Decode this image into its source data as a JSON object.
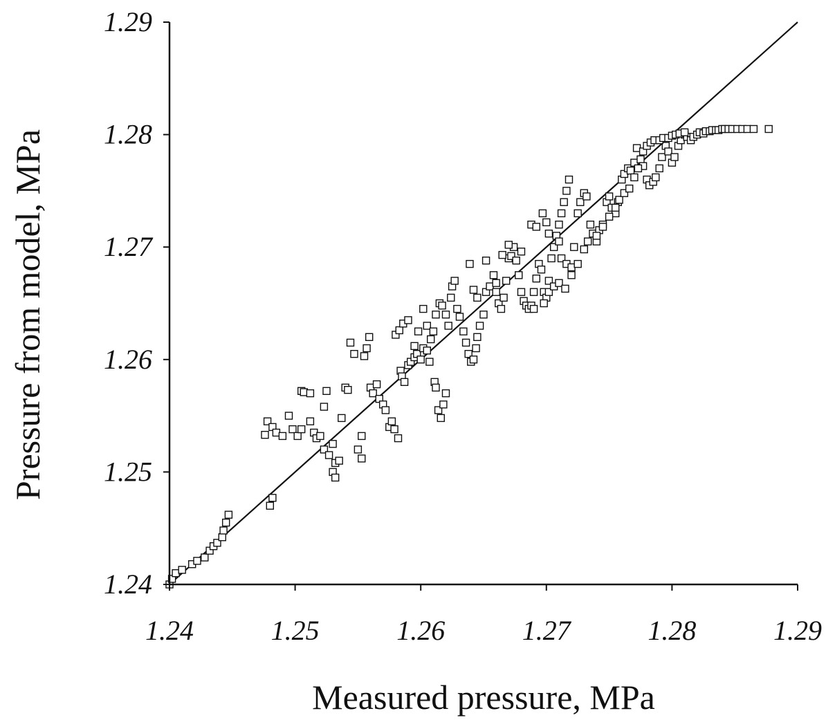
{
  "chart_data": {
    "type": "scatter",
    "title": "",
    "xlabel": "Measured pressure, MPa",
    "ylabel": "Pressure from model, MPa",
    "xlim": [
      1.24,
      1.29
    ],
    "ylim": [
      1.24,
      1.29
    ],
    "x_ticks": [
      "1.24",
      "1.25",
      "1.26",
      "1.27",
      "1.28",
      "1.29"
    ],
    "y_ticks": [
      "1.24",
      "1.25",
      "1.26",
      "1.27",
      "1.28",
      "1.29"
    ],
    "grid": false,
    "legend": "none",
    "marker": "open-square",
    "reference_line": {
      "x": [
        1.24,
        1.29
      ],
      "y": [
        1.24,
        1.29
      ]
    },
    "series": [
      {
        "points": [
          [
            1.24,
            1.24
          ],
          [
            1.2402,
            1.2405
          ],
          [
            1.2405,
            1.241
          ],
          [
            1.241,
            1.2413
          ],
          [
            1.2418,
            1.2418
          ],
          [
            1.2422,
            1.2421
          ],
          [
            1.2428,
            1.2424
          ],
          [
            1.2432,
            1.243
          ],
          [
            1.2435,
            1.2434
          ],
          [
            1.2438,
            1.2437
          ],
          [
            1.2442,
            1.2442
          ],
          [
            1.2443,
            1.2448
          ],
          [
            1.2445,
            1.2455
          ],
          [
            1.2447,
            1.2462
          ],
          [
            1.248,
            1.247
          ],
          [
            1.2482,
            1.2477
          ],
          [
            1.2476,
            1.2533
          ],
          [
            1.2478,
            1.2545
          ],
          [
            1.2482,
            1.254
          ],
          [
            1.2485,
            1.2535
          ],
          [
            1.249,
            1.2532
          ],
          [
            1.2495,
            1.255
          ],
          [
            1.2498,
            1.2538
          ],
          [
            1.2502,
            1.2532
          ],
          [
            1.2505,
            1.2538
          ],
          [
            1.2505,
            1.2572
          ],
          [
            1.2507,
            1.2571
          ],
          [
            1.2512,
            1.257
          ],
          [
            1.2512,
            1.2545
          ],
          [
            1.2515,
            1.2535
          ],
          [
            1.2517,
            1.253
          ],
          [
            1.252,
            1.2532
          ],
          [
            1.2523,
            1.2558
          ],
          [
            1.2525,
            1.2572
          ],
          [
            1.2523,
            1.252
          ],
          [
            1.2527,
            1.2515
          ],
          [
            1.253,
            1.2525
          ],
          [
            1.2532,
            1.2508
          ],
          [
            1.253,
            1.25
          ],
          [
            1.2532,
            1.2495
          ],
          [
            1.2535,
            1.251
          ],
          [
            1.2537,
            1.2548
          ],
          [
            1.254,
            1.2575
          ],
          [
            1.2542,
            1.2573
          ],
          [
            1.2544,
            1.2615
          ],
          [
            1.2547,
            1.2605
          ],
          [
            1.255,
            1.252
          ],
          [
            1.2553,
            1.2512
          ],
          [
            1.2553,
            1.2532
          ],
          [
            1.2555,
            1.2603
          ],
          [
            1.2557,
            1.261
          ],
          [
            1.2559,
            1.262
          ],
          [
            1.256,
            1.2575
          ],
          [
            1.2562,
            1.257
          ],
          [
            1.2565,
            1.2578
          ],
          [
            1.2567,
            1.2565
          ],
          [
            1.257,
            1.256
          ],
          [
            1.2572,
            1.2555
          ],
          [
            1.2575,
            1.254
          ],
          [
            1.2577,
            1.2545
          ],
          [
            1.2579,
            1.2538
          ],
          [
            1.2582,
            1.253
          ],
          [
            1.2584,
            1.259
          ],
          [
            1.2585,
            1.2585
          ],
          [
            1.2587,
            1.258
          ],
          [
            1.259,
            1.2595
          ],
          [
            1.2592,
            1.2598
          ],
          [
            1.2595,
            1.2602
          ],
          [
            1.2597,
            1.2605
          ],
          [
            1.26,
            1.26
          ],
          [
            1.2602,
            1.261
          ],
          [
            1.2605,
            1.2608
          ],
          [
            1.2607,
            1.2598
          ],
          [
            1.2611,
            1.258
          ],
          [
            1.2612,
            1.2575
          ],
          [
            1.2614,
            1.2555
          ],
          [
            1.2616,
            1.2548
          ],
          [
            1.2618,
            1.256
          ],
          [
            1.262,
            1.257
          ],
          [
            1.258,
            1.2622
          ],
          [
            1.2583,
            1.2626
          ],
          [
            1.2586,
            1.2632
          ],
          [
            1.259,
            1.2635
          ],
          [
            1.2595,
            1.2612
          ],
          [
            1.2598,
            1.2625
          ],
          [
            1.2602,
            1.2645
          ],
          [
            1.2605,
            1.263
          ],
          [
            1.2608,
            1.2618
          ],
          [
            1.261,
            1.2625
          ],
          [
            1.2612,
            1.264
          ],
          [
            1.2615,
            1.265
          ],
          [
            1.2617,
            1.2648
          ],
          [
            1.262,
            1.264
          ],
          [
            1.2622,
            1.263
          ],
          [
            1.2624,
            1.2655
          ],
          [
            1.2625,
            1.2665
          ],
          [
            1.2627,
            1.267
          ],
          [
            1.2629,
            1.2645
          ],
          [
            1.2631,
            1.2638
          ],
          [
            1.2634,
            1.2625
          ],
          [
            1.2636,
            1.2615
          ],
          [
            1.2638,
            1.2605
          ],
          [
            1.264,
            1.2598
          ],
          [
            1.2642,
            1.26
          ],
          [
            1.2644,
            1.261
          ],
          [
            1.2645,
            1.262
          ],
          [
            1.2647,
            1.263
          ],
          [
            1.265,
            1.264
          ],
          [
            1.2652,
            1.266
          ],
          [
            1.2655,
            1.2665
          ],
          [
            1.2658,
            1.2675
          ],
          [
            1.266,
            1.266
          ],
          [
            1.2662,
            1.265
          ],
          [
            1.2664,
            1.2645
          ],
          [
            1.2666,
            1.2655
          ],
          [
            1.2668,
            1.267
          ],
          [
            1.267,
            1.269
          ],
          [
            1.2672,
            1.2692
          ],
          [
            1.2674,
            1.27
          ],
          [
            1.2676,
            1.2688
          ],
          [
            1.2678,
            1.2675
          ],
          [
            1.268,
            1.266
          ],
          [
            1.2682,
            1.2652
          ],
          [
            1.2684,
            1.2648
          ],
          [
            1.2686,
            1.2645
          ],
          [
            1.2688,
            1.2648
          ],
          [
            1.269,
            1.266
          ],
          [
            1.2692,
            1.2672
          ],
          [
            1.2694,
            1.2685
          ],
          [
            1.2696,
            1.268
          ],
          [
            1.2698,
            1.266
          ],
          [
            1.27,
            1.2655
          ],
          [
            1.2702,
            1.267
          ],
          [
            1.2704,
            1.269
          ],
          [
            1.2706,
            1.27
          ],
          [
            1.2708,
            1.271
          ],
          [
            1.271,
            1.272
          ],
          [
            1.2712,
            1.273
          ],
          [
            1.2714,
            1.274
          ],
          [
            1.2716,
            1.275
          ],
          [
            1.2718,
            1.276
          ],
          [
            1.2639,
            1.2685
          ],
          [
            1.2642,
            1.2662
          ],
          [
            1.2645,
            1.2655
          ],
          [
            1.2652,
            1.2688
          ],
          [
            1.266,
            1.2668
          ],
          [
            1.2665,
            1.2693
          ],
          [
            1.267,
            1.2702
          ],
          [
            1.268,
            1.2696
          ],
          [
            1.2688,
            1.272
          ],
          [
            1.2692,
            1.2718
          ],
          [
            1.2697,
            1.273
          ],
          [
            1.27,
            1.2722
          ],
          [
            1.2702,
            1.2712
          ],
          [
            1.271,
            1.2705
          ],
          [
            1.2712,
            1.269
          ],
          [
            1.2716,
            1.2685
          ],
          [
            1.272,
            1.2682
          ],
          [
            1.2722,
            1.27
          ],
          [
            1.2725,
            1.273
          ],
          [
            1.2727,
            1.274
          ],
          [
            1.273,
            1.2748
          ],
          [
            1.2732,
            1.2745
          ],
          [
            1.2735,
            1.272
          ],
          [
            1.2737,
            1.2712
          ],
          [
            1.274,
            1.2705
          ],
          [
            1.2742,
            1.2715
          ],
          [
            1.2745,
            1.272
          ],
          [
            1.2748,
            1.274
          ],
          [
            1.275,
            1.2745
          ],
          [
            1.2752,
            1.2735
          ],
          [
            1.2755,
            1.273
          ],
          [
            1.2757,
            1.274
          ],
          [
            1.276,
            1.276
          ],
          [
            1.2762,
            1.2765
          ],
          [
            1.2765,
            1.277
          ],
          [
            1.2767,
            1.2768
          ],
          [
            1.277,
            1.2775
          ],
          [
            1.2772,
            1.2788
          ],
          [
            1.2775,
            1.2778
          ],
          [
            1.2777,
            1.2772
          ],
          [
            1.278,
            1.276
          ],
          [
            1.2782,
            1.2755
          ],
          [
            1.2785,
            1.2758
          ],
          [
            1.2787,
            1.2762
          ],
          [
            1.279,
            1.277
          ],
          [
            1.2792,
            1.278
          ],
          [
            1.2795,
            1.279
          ],
          [
            1.2797,
            1.2785
          ],
          [
            1.28,
            1.2775
          ],
          [
            1.2802,
            1.278
          ],
          [
            1.2805,
            1.279
          ],
          [
            1.2807,
            1.2795
          ],
          [
            1.281,
            1.28
          ],
          [
            1.2812,
            1.2798
          ],
          [
            1.2815,
            1.2795
          ],
          [
            1.2817,
            1.2798
          ],
          [
            1.282,
            1.28
          ],
          [
            1.2822,
            1.2802
          ],
          [
            1.2825,
            1.2801
          ],
          [
            1.2827,
            1.2803
          ],
          [
            1.283,
            1.2803
          ],
          [
            1.2832,
            1.2804
          ],
          [
            1.2835,
            1.2804
          ],
          [
            1.2837,
            1.2804
          ],
          [
            1.284,
            1.2805
          ],
          [
            1.2842,
            1.2805
          ],
          [
            1.2845,
            1.2805
          ],
          [
            1.2848,
            1.2805
          ],
          [
            1.2852,
            1.2805
          ],
          [
            1.2856,
            1.2805
          ],
          [
            1.286,
            1.2805
          ],
          [
            1.2865,
            1.2805
          ],
          [
            1.2877,
            1.2805
          ],
          [
            1.269,
            1.2645
          ],
          [
            1.2698,
            1.265
          ],
          [
            1.2702,
            1.266
          ],
          [
            1.2706,
            1.2665
          ],
          [
            1.271,
            1.2668
          ],
          [
            1.2715,
            1.2663
          ],
          [
            1.272,
            1.2675
          ],
          [
            1.2725,
            1.2685
          ],
          [
            1.273,
            1.2698
          ],
          [
            1.2733,
            1.2705
          ],
          [
            1.274,
            1.271
          ],
          [
            1.2745,
            1.2718
          ],
          [
            1.275,
            1.2727
          ],
          [
            1.2755,
            1.2735
          ],
          [
            1.2758,
            1.2742
          ],
          [
            1.2762,
            1.2748
          ],
          [
            1.2766,
            1.2752
          ],
          [
            1.277,
            1.2762
          ],
          [
            1.2773,
            1.277
          ],
          [
            1.2777,
            1.2785
          ],
          [
            1.278,
            1.279
          ],
          [
            1.2783,
            1.2793
          ],
          [
            1.2786,
            1.2795
          ],
          [
            1.279,
            1.2795
          ],
          [
            1.2793,
            1.2797
          ],
          [
            1.2797,
            1.2797
          ],
          [
            1.28,
            1.2799
          ],
          [
            1.2803,
            1.28
          ],
          [
            1.2806,
            1.2801
          ],
          [
            1.281,
            1.2802
          ]
        ]
      }
    ]
  }
}
